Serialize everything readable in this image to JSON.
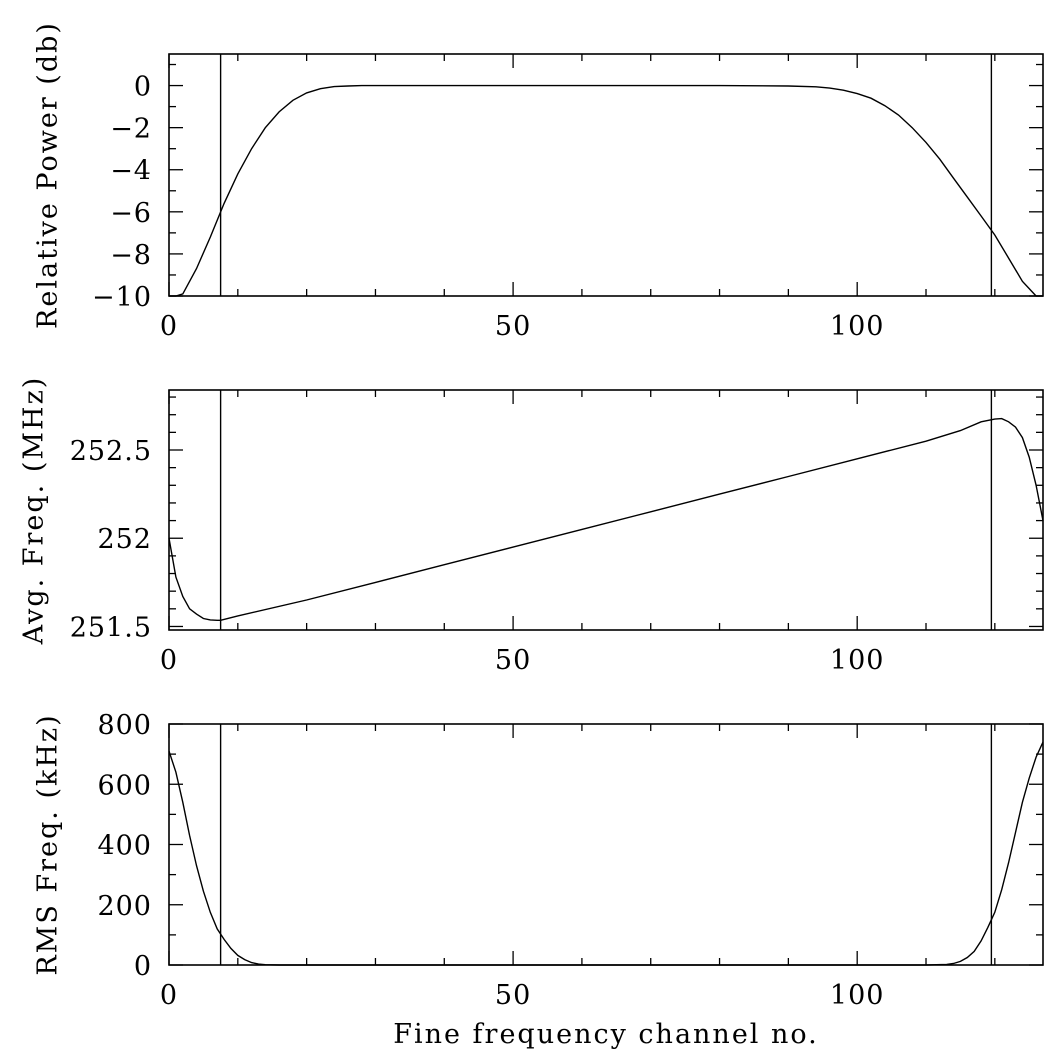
{
  "chart_data": [
    {
      "type": "line",
      "ylabel": "Relative Power (db)",
      "xlim": [
        0,
        127
      ],
      "ylim": [
        -10,
        1.5
      ],
      "x_ticks": [
        0,
        50,
        100
      ],
      "y_ticks": [
        0,
        -2,
        -4,
        -6,
        -8,
        -10
      ],
      "y_tick_labels": [
        "0",
        "−2",
        "−4",
        "−6",
        "−8",
        "−10"
      ],
      "x_minor_step": 10,
      "y_minor_step": 1,
      "vlines": [
        7.5,
        119.5
      ],
      "series": [
        {
          "x": [
            0,
            1,
            2,
            4,
            6,
            8,
            10,
            12,
            14,
            16,
            18,
            20,
            22,
            24,
            26,
            28,
            30,
            35,
            40,
            50,
            60,
            70,
            80,
            90,
            94,
            96,
            98,
            100,
            102,
            104,
            106,
            108,
            110,
            112,
            114,
            116,
            118,
            120,
            122,
            124,
            126,
            127
          ],
          "y": [
            -10,
            -10,
            -9.9,
            -8.7,
            -7.2,
            -5.6,
            -4.2,
            -3.0,
            -2.0,
            -1.25,
            -0.7,
            -0.35,
            -0.15,
            -0.05,
            -0.02,
            0,
            0,
            0,
            0,
            0,
            0,
            0,
            0,
            -0.02,
            -0.06,
            -0.12,
            -0.22,
            -0.38,
            -0.6,
            -0.95,
            -1.4,
            -2.0,
            -2.7,
            -3.5,
            -4.4,
            -5.3,
            -6.2,
            -7.1,
            -8.2,
            -9.3,
            -10,
            -10
          ]
        }
      ]
    },
    {
      "type": "line",
      "ylabel": "Avg. Freq. (MHz)",
      "xlim": [
        0,
        127
      ],
      "ylim": [
        251.48,
        252.84
      ],
      "x_ticks": [
        0,
        50,
        100
      ],
      "y_ticks": [
        251.5,
        252,
        252.5
      ],
      "y_tick_labels": [
        "251.5",
        "252",
        "252.5"
      ],
      "x_minor_step": 10,
      "y_minor_step": 0.1,
      "vlines": [
        7.5,
        119.5
      ],
      "series": [
        {
          "x": [
            0,
            1,
            2,
            3,
            4,
            5,
            6,
            7,
            7.5,
            10,
            20,
            30,
            40,
            50,
            60,
            70,
            80,
            90,
            100,
            110,
            115,
            118,
            120,
            121,
            122,
            123,
            124,
            125,
            126,
            127
          ],
          "y": [
            252.0,
            251.78,
            251.67,
            251.6,
            251.57,
            251.545,
            251.537,
            251.535,
            251.535,
            251.56,
            251.65,
            251.75,
            251.85,
            251.95,
            252.05,
            252.15,
            252.25,
            252.35,
            252.45,
            252.55,
            252.61,
            252.66,
            252.675,
            252.678,
            252.66,
            252.63,
            252.57,
            252.46,
            252.3,
            252.1
          ]
        }
      ]
    },
    {
      "type": "line",
      "ylabel": "RMS Freq. (kHz)",
      "xlabel": "Fine frequency channel no.",
      "xlim": [
        0,
        127
      ],
      "ylim": [
        0,
        800
      ],
      "x_ticks": [
        0,
        50,
        100
      ],
      "y_ticks": [
        0,
        200,
        400,
        600,
        800
      ],
      "y_tick_labels": [
        "0",
        "200",
        "400",
        "600",
        "800"
      ],
      "x_minor_step": 10,
      "y_minor_step": 100,
      "vlines": [
        7.5,
        119.5
      ],
      "series": [
        {
          "x": [
            0,
            1,
            2,
            3,
            4,
            5,
            6,
            7,
            8,
            9,
            10,
            11,
            12,
            13,
            14,
            16,
            20,
            30,
            50,
            80,
            100,
            110,
            113,
            114,
            115,
            116,
            117,
            118,
            119,
            120,
            121,
            122,
            123,
            124,
            125,
            126,
            127
          ],
          "y": [
            710,
            640,
            540,
            430,
            330,
            245,
            175,
            120,
            85,
            55,
            32,
            18,
            8,
            3,
            1,
            0,
            0,
            0,
            0,
            0,
            0,
            0,
            2,
            5,
            12,
            25,
            45,
            80,
            125,
            175,
            250,
            340,
            440,
            540,
            620,
            690,
            740
          ]
        }
      ]
    }
  ]
}
